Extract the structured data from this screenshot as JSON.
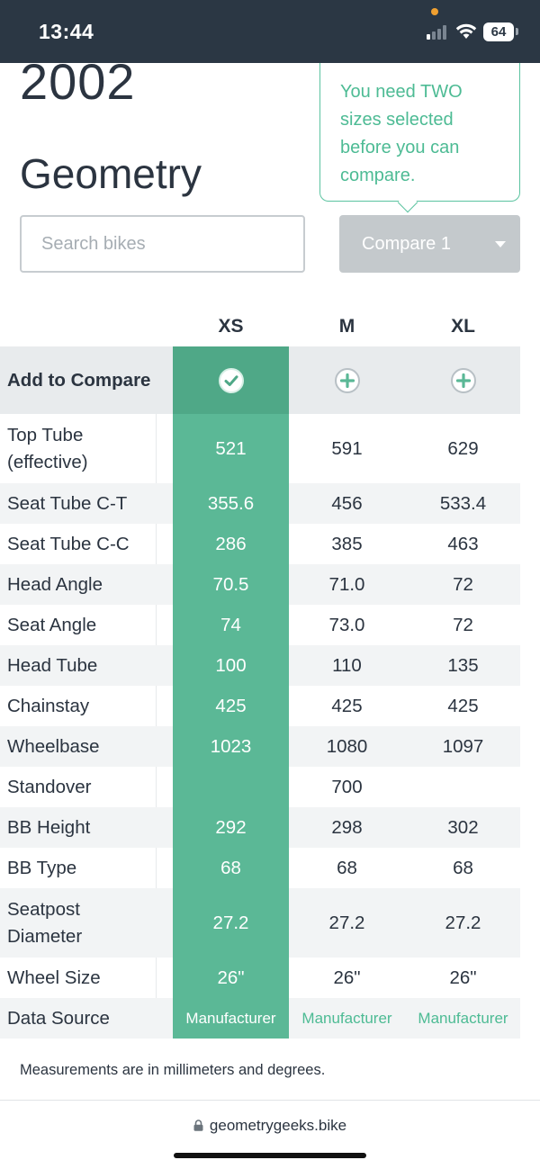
{
  "status_bar": {
    "time": "13:44",
    "battery": "64",
    "icons": [
      "signal-icon",
      "wifi-icon",
      "battery-icon"
    ]
  },
  "page": {
    "title_year": "2002",
    "title_section": "Geometry"
  },
  "tooltip": {
    "text": "You need TWO sizes selected before you can compare."
  },
  "search": {
    "placeholder": "Search bikes",
    "value": ""
  },
  "compare_button": {
    "label": "Compare 1",
    "icon": "chevron-down-icon"
  },
  "table": {
    "sizes": [
      "XS",
      "M",
      "XL"
    ],
    "selected_size": "XS",
    "compare_row_label": "Add to Compare",
    "compare_icons": [
      "check-circle-icon",
      "plus-circle-icon",
      "plus-circle-icon"
    ],
    "rows": [
      {
        "label": "Top Tube (effective)",
        "values": [
          "521",
          "591",
          "629"
        ]
      },
      {
        "label": "Seat Tube C-T",
        "values": [
          "355.6",
          "456",
          "533.4"
        ]
      },
      {
        "label": "Seat Tube C-C",
        "values": [
          "286",
          "385",
          "463"
        ]
      },
      {
        "label": "Head Angle",
        "values": [
          "70.5",
          "71.0",
          "72"
        ]
      },
      {
        "label": "Seat Angle",
        "values": [
          "74",
          "73.0",
          "72"
        ]
      },
      {
        "label": "Head Tube",
        "values": [
          "100",
          "110",
          "135"
        ]
      },
      {
        "label": "Chainstay",
        "values": [
          "425",
          "425",
          "425"
        ]
      },
      {
        "label": "Wheelbase",
        "values": [
          "1023",
          "1080",
          "1097"
        ]
      },
      {
        "label": "Standover",
        "values": [
          "",
          "700",
          ""
        ]
      },
      {
        "label": "BB Height",
        "values": [
          "292",
          "298",
          "302"
        ]
      },
      {
        "label": "BB Type",
        "values": [
          "68",
          "68",
          "68"
        ]
      },
      {
        "label": "Seatpost Diameter",
        "values": [
          "27.2",
          "27.2",
          "27.2"
        ]
      },
      {
        "label": "Wheel Size",
        "values": [
          "26\"",
          "26\"",
          "26\""
        ]
      },
      {
        "label": "Data Source",
        "values": [
          "Manufacturer",
          "Manufacturer",
          "Manufacturer"
        ]
      }
    ]
  },
  "footnote": "Measurements are in millimeters and degrees.",
  "browser": {
    "url": "geometrygeeks.bike"
  },
  "colors": {
    "accent": "#5bb896",
    "accent_dark": "#4fa887",
    "tooltip_text": "#4dbb94",
    "status_bar": "#2b3744",
    "button_disabled": "#c4c9cc"
  }
}
